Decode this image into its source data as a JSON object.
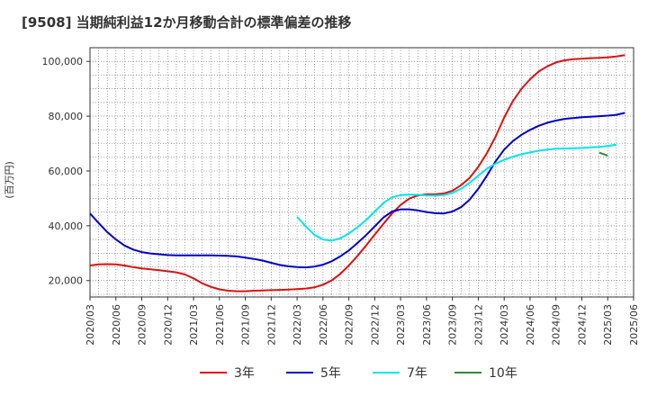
{
  "chart_data": {
    "type": "line",
    "title": "[9508]  当期純利益12か月移動合計の標準偏差の推移",
    "ylabel": "(百万円)",
    "xlabel": "",
    "x_start": "2020/03",
    "x_end": "2025/06",
    "ylim": [
      14000,
      105000
    ],
    "x_ticks": [
      "2020/03",
      "2020/06",
      "2020/09",
      "2020/12",
      "2021/03",
      "2021/06",
      "2021/09",
      "2021/12",
      "2022/03",
      "2022/06",
      "2022/09",
      "2022/12",
      "2023/03",
      "2023/06",
      "2023/09",
      "2023/12",
      "2024/03",
      "2024/06",
      "2024/09",
      "2024/12",
      "2025/03",
      "2025/06"
    ],
    "y_ticks": [
      20000,
      40000,
      60000,
      80000,
      100000
    ],
    "y_tick_labels": [
      "20,000",
      "40,000",
      "60,000",
      "80,000",
      "100,000"
    ],
    "grid": true,
    "legend_position": "bottom",
    "series": [
      {
        "name": "3年",
        "color": "#dd1111",
        "start": "2020/03",
        "values": [
          25500,
          25900,
          26000,
          25900,
          25500,
          24900,
          24400,
          24100,
          23800,
          23400,
          23000,
          22200,
          20800,
          19000,
          17700,
          16800,
          16300,
          16100,
          16100,
          16300,
          16400,
          16500,
          16600,
          16700,
          16900,
          17100,
          17500,
          18500,
          20000,
          22400,
          25500,
          29000,
          32800,
          36800,
          40700,
          44500,
          47600,
          49900,
          51100,
          51500,
          51500,
          51800,
          52800,
          54800,
          57500,
          61500,
          66500,
          72500,
          79500,
          85500,
          90000,
          93500,
          96300,
          98200,
          99600,
          100400,
          100800,
          101000,
          101200,
          101300,
          101500,
          101800,
          102300
        ]
      },
      {
        "name": "5年",
        "color": "#0000cc",
        "start": "2020/03",
        "values": [
          44500,
          41000,
          37700,
          35000,
          32800,
          31300,
          30400,
          29900,
          29600,
          29300,
          29200,
          29200,
          29200,
          29200,
          29200,
          29100,
          29000,
          28800,
          28400,
          27900,
          27300,
          26500,
          25700,
          25200,
          24900,
          24800,
          25100,
          25800,
          27000,
          28800,
          31000,
          33700,
          36600,
          39800,
          43000,
          45200,
          46000,
          46000,
          45600,
          45000,
          44600,
          44500,
          45200,
          46800,
          49500,
          53500,
          58300,
          63500,
          67800,
          70900,
          73200,
          75000,
          76500,
          77600,
          78400,
          79000,
          79300,
          79600,
          79800,
          80000,
          80200,
          80500,
          81200
        ]
      },
      {
        "name": "7年",
        "color": "#00e5ee",
        "start": "2022/03",
        "values": [
          43200,
          39800,
          36700,
          35000,
          34600,
          35400,
          37200,
          39500,
          42100,
          45200,
          48300,
          50400,
          51200,
          51400,
          51300,
          51100,
          51000,
          51200,
          52000,
          53500,
          55700,
          58300,
          60800,
          62700,
          64100,
          65200,
          66100,
          66800,
          67400,
          67800,
          68100,
          68200,
          68300,
          68400,
          68600,
          68800,
          69100,
          69600
        ]
      },
      {
        "name": "10年",
        "color": "#2e8b2e",
        "start": "2025/02",
        "values": [
          66700,
          65600
        ]
      }
    ]
  }
}
